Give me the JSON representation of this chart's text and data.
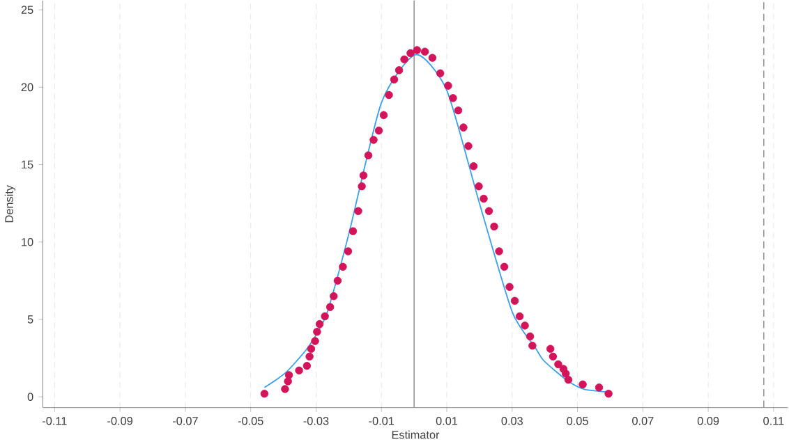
{
  "chart_data": {
    "type": "scatter",
    "xlabel": "Estimator",
    "ylabel": "Density",
    "xlim": [
      -0.1136,
      0.1144
    ],
    "ylim": [
      -0.7,
      25.6
    ],
    "xticks": [
      -0.11,
      -0.09,
      -0.07,
      -0.05,
      -0.03,
      -0.01,
      0.01,
      0.03,
      0.05,
      0.07,
      0.09,
      0.11
    ],
    "yticks": [
      0,
      5,
      10,
      15,
      20,
      25
    ],
    "grid": "x",
    "series": [
      {
        "type": "line",
        "marker": "none",
        "color": "#3fa0ec",
        "x": [
          -0.0458,
          -0.0422,
          -0.0391,
          -0.036,
          -0.0328,
          -0.0297,
          -0.0265,
          -0.02,
          -0.01,
          0.0005,
          0.01,
          0.02,
          0.03,
          0.037,
          0.0394,
          0.0425,
          0.0472,
          0.0519,
          0.0595
        ],
        "values": [
          0.6,
          1.1,
          1.6,
          2.3,
          3.1,
          4.1,
          5.5,
          10.5,
          19,
          22.1,
          19.8,
          12.5,
          5.5,
          3.2,
          2.4,
          1.8,
          1,
          0.5,
          0.3
        ]
      },
      {
        "marker": "circle",
        "color": "#d4145a",
        "x": [
          -0.0458,
          -0.0395,
          -0.0386,
          -0.0383,
          -0.0352,
          -0.0328,
          -0.032,
          -0.0315,
          -0.0303,
          -0.0297,
          -0.0289,
          -0.0273,
          -0.0257,
          -0.0246,
          -0.0234,
          -0.0218,
          -0.0202,
          -0.0187,
          -0.0171,
          -0.016,
          -0.0155,
          -0.014,
          -0.0124,
          -0.0108,
          -0.0093,
          -0.0077,
          -0.0061,
          -0.0046,
          -0.003,
          -0.0011,
          0.0009,
          0.0033,
          0.0056,
          0.008,
          0.0104,
          0.0119,
          0.0135,
          0.0151,
          0.0166,
          0.0182,
          0.0198,
          0.0213,
          0.0229,
          0.0245,
          0.026,
          0.0276,
          0.0292,
          0.0308,
          0.0323,
          0.0339,
          0.0355,
          0.0362,
          0.0417,
          0.0425,
          0.0441,
          0.0457,
          0.0464,
          0.0472,
          0.0516,
          0.0566,
          0.0595
        ],
        "values": [
          0.2,
          0.5,
          1,
          1.4,
          1.7,
          2,
          2.6,
          3.1,
          3.6,
          4.2,
          4.7,
          5.2,
          5.8,
          6.5,
          7.5,
          8.4,
          9.4,
          10.7,
          12,
          13.6,
          14.3,
          15.6,
          16.6,
          17.2,
          18.2,
          19.5,
          20.5,
          21.1,
          21.8,
          22.2,
          22.4,
          22.3,
          21.9,
          20.9,
          20.1,
          19.3,
          18.5,
          17.4,
          16.2,
          14.9,
          13.6,
          12.8,
          12,
          11,
          9.4,
          8.4,
          7.1,
          6.2,
          5.2,
          4.6,
          3.9,
          3.3,
          3.1,
          2.6,
          2.1,
          1.8,
          1.5,
          1.1,
          0.8,
          0.6,
          0.2
        ]
      }
    ],
    "ref_lines": [
      {
        "axis": "x",
        "value": 0,
        "color": "#999999",
        "line_style": "solid"
      },
      {
        "axis": "x",
        "value": 0.107,
        "color": "#999999",
        "line_style": "dashed"
      }
    ]
  }
}
